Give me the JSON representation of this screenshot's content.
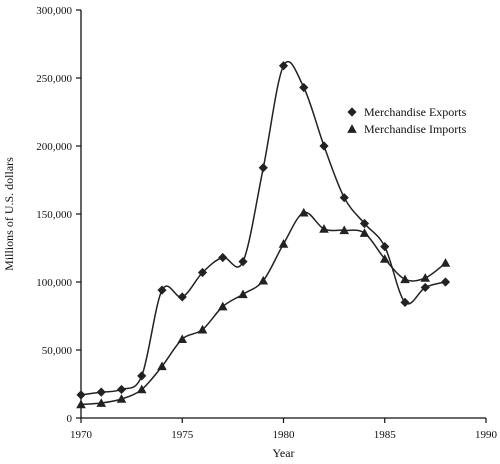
{
  "chart_data": {
    "type": "line",
    "title": "",
    "xlabel": "Year",
    "ylabel": "Millions of U.S. dollars",
    "xlim": [
      1970,
      1990
    ],
    "ylim": [
      0,
      300000
    ],
    "x_ticks": [
      1970,
      1975,
      1980,
      1985,
      1990
    ],
    "x_tick_labels": [
      "1970",
      "1975",
      "1980",
      "1985",
      "1990"
    ],
    "y_ticks": [
      0,
      50000,
      100000,
      150000,
      200000,
      250000,
      300000
    ],
    "y_tick_labels": [
      "0",
      "50,000",
      "100,000",
      "150,000",
      "200,000",
      "250,000",
      "300,000"
    ],
    "grid": false,
    "legend_position": "right",
    "series": [
      {
        "name": "Merchandise Exports",
        "marker": "diamond",
        "color": "#222222",
        "x": [
          1970,
          1971,
          1972,
          1973,
          1974,
          1975,
          1976,
          1977,
          1978,
          1979,
          1980,
          1981,
          1982,
          1983,
          1984,
          1985,
          1986,
          1987,
          1988
        ],
        "values": [
          17000,
          19000,
          21000,
          31000,
          94000,
          89000,
          107000,
          118000,
          115000,
          184000,
          259000,
          243000,
          200000,
          162000,
          143000,
          126000,
          85000,
          96000,
          100000
        ]
      },
      {
        "name": "Merchandise Imports",
        "marker": "triangle",
        "color": "#222222",
        "x": [
          1970,
          1971,
          1972,
          1973,
          1974,
          1975,
          1976,
          1977,
          1978,
          1979,
          1980,
          1981,
          1982,
          1983,
          1984,
          1985,
          1986,
          1987,
          1988
        ],
        "values": [
          10000,
          11000,
          14000,
          21000,
          38000,
          58000,
          65000,
          82000,
          91000,
          101000,
          128000,
          151000,
          139000,
          138000,
          136000,
          117000,
          102000,
          103000,
          114000
        ]
      }
    ]
  }
}
